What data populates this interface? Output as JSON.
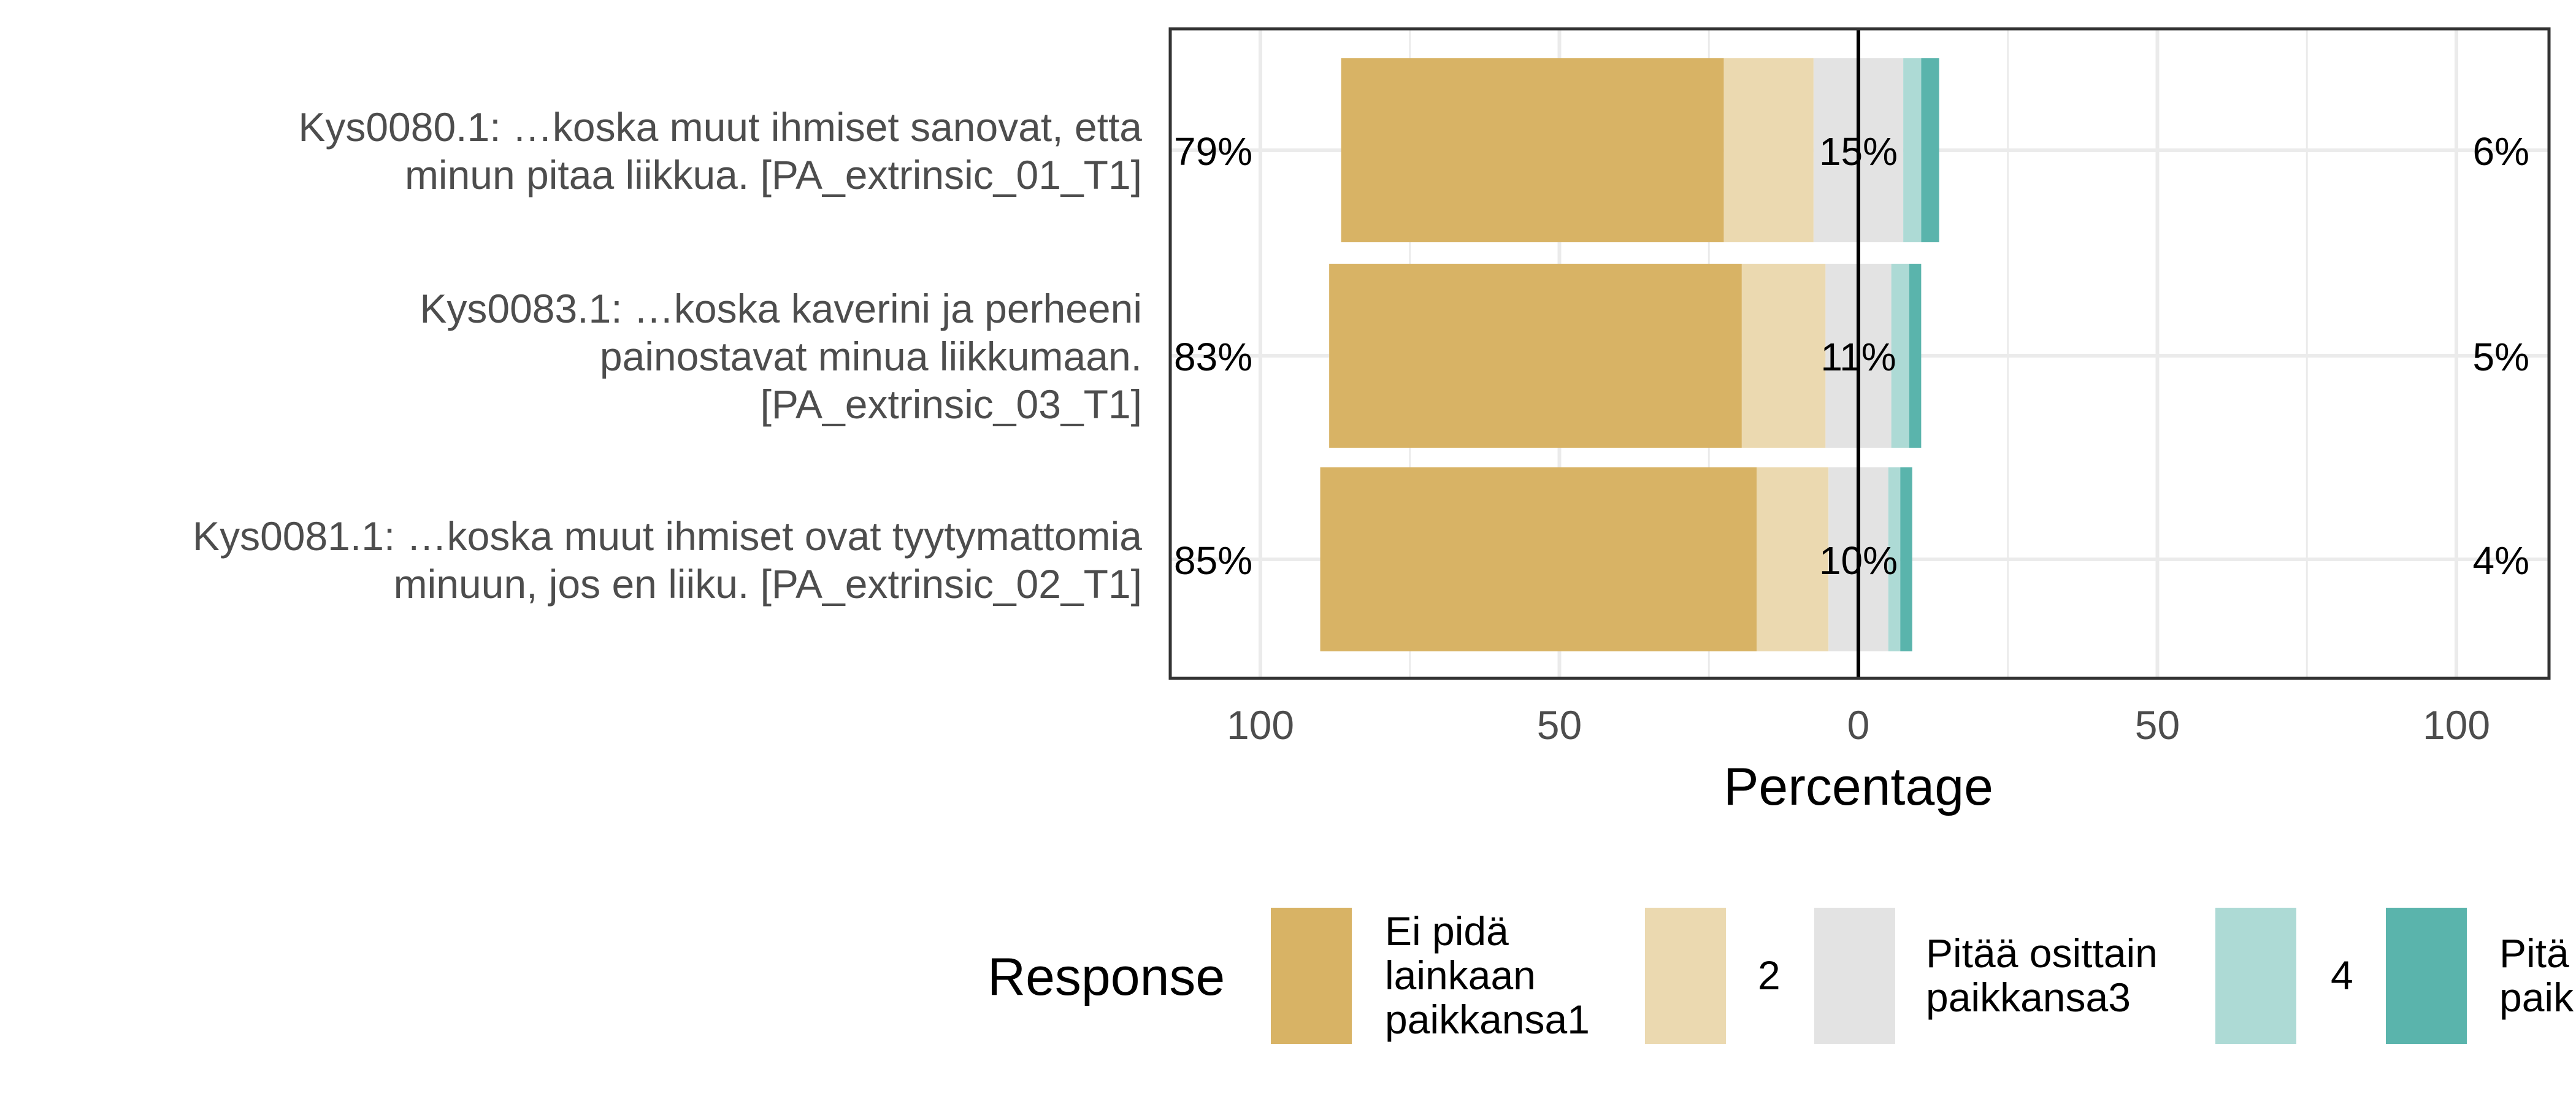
{
  "chart_data": {
    "type": "bar",
    "orientation": "horizontal",
    "layout": "diverging-stacked",
    "xlabel": "Percentage",
    "xlim": [
      -100,
      100
    ],
    "xticks": [
      -100,
      -50,
      0,
      50,
      100
    ],
    "xtick_labels": [
      "100",
      "50",
      "0",
      "50",
      "100"
    ],
    "grid": true,
    "legend": {
      "title": "Response",
      "position": "bottom",
      "entries": [
        {
          "label_lines": [
            "Ei pidä",
            "lainkaan",
            "paikkansa1"
          ],
          "color": "#D8B365"
        },
        {
          "label_lines": [
            "2"
          ],
          "color": "#EBD9B0"
        },
        {
          "label_lines": [
            "Pitää osittain",
            "paikkansa3"
          ],
          "color": "#E3E3E3"
        },
        {
          "label_lines": [
            "4"
          ],
          "color": "#ADDAD5"
        },
        {
          "label_lines": [
            "Pitä",
            "paik"
          ],
          "color": "#5AB4AC"
        }
      ]
    },
    "categories": [
      {
        "label_lines": [
          "Kys0080.1: …koska muut ihmiset sanovat, etta",
          "minun pitaa liikkua. [PA_extrinsic_01_T1]"
        ],
        "values": [
          64,
          15,
          15,
          3,
          3
        ],
        "left_label": "79%",
        "center_label": "15%",
        "right_label": "6%"
      },
      {
        "label_lines": [
          "Kys0083.1: …koska kaverini ja perheeni",
          "painostavat minua liikkumaan.",
          "[PA_extrinsic_03_T1]"
        ],
        "values": [
          69,
          14,
          11,
          3,
          2
        ],
        "left_label": "83%",
        "center_label": "11%",
        "right_label": "5%"
      },
      {
        "label_lines": [
          "Kys0081.1: …koska muut ihmiset ovat tyytymattomia",
          "minuun, jos en liiku. [PA_extrinsic_02_T1]"
        ],
        "values": [
          73,
          12,
          10,
          2,
          2
        ],
        "left_label": "85%",
        "center_label": "10%",
        "right_label": "4%"
      }
    ]
  }
}
